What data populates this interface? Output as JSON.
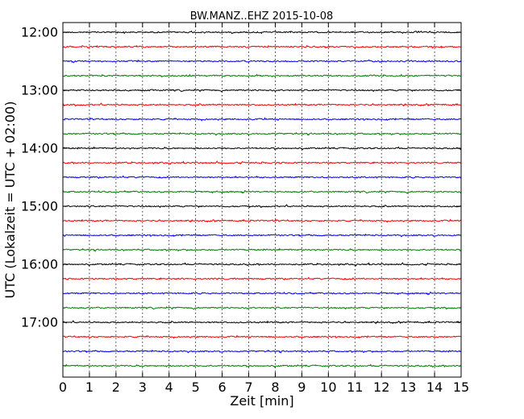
{
  "chart_data": {
    "type": "line",
    "title": "BW.MANZ..EHZ 2015-10-08",
    "xlabel": "Zeit  [min]",
    "ylabel": "UTC (Lokalzeit = UTC + 02:00)",
    "xlim": [
      0,
      15
    ],
    "x_ticks": [
      0,
      1,
      2,
      3,
      4,
      5,
      6,
      7,
      8,
      9,
      10,
      11,
      12,
      13,
      14,
      15
    ],
    "grid": "vertical dotted",
    "hour_labels": [
      "12:00",
      "13:00",
      "14:00",
      "15:00",
      "16:00",
      "17:00"
    ],
    "traces_per_hour": 4,
    "trace_minutes": 15,
    "series": [
      {
        "start": "12:00",
        "color": "#000000"
      },
      {
        "start": "12:15",
        "color": "#ff0000"
      },
      {
        "start": "12:30",
        "color": "#0000ff"
      },
      {
        "start": "12:45",
        "color": "#008000"
      },
      {
        "start": "13:00",
        "color": "#000000"
      },
      {
        "start": "13:15",
        "color": "#ff0000"
      },
      {
        "start": "13:30",
        "color": "#0000ff"
      },
      {
        "start": "13:45",
        "color": "#008000"
      },
      {
        "start": "14:00",
        "color": "#000000"
      },
      {
        "start": "14:15",
        "color": "#ff0000"
      },
      {
        "start": "14:30",
        "color": "#0000ff"
      },
      {
        "start": "14:45",
        "color": "#008000"
      },
      {
        "start": "15:00",
        "color": "#000000"
      },
      {
        "start": "15:15",
        "color": "#ff0000"
      },
      {
        "start": "15:30",
        "color": "#0000ff"
      },
      {
        "start": "15:45",
        "color": "#008000"
      },
      {
        "start": "16:00",
        "color": "#000000"
      },
      {
        "start": "16:15",
        "color": "#ff0000"
      },
      {
        "start": "16:30",
        "color": "#0000ff"
      },
      {
        "start": "16:45",
        "color": "#008000"
      },
      {
        "start": "17:00",
        "color": "#000000"
      },
      {
        "start": "17:15",
        "color": "#ff0000"
      },
      {
        "start": "17:30",
        "color": "#0000ff"
      },
      {
        "start": "17:45",
        "color": "#008000"
      }
    ]
  }
}
